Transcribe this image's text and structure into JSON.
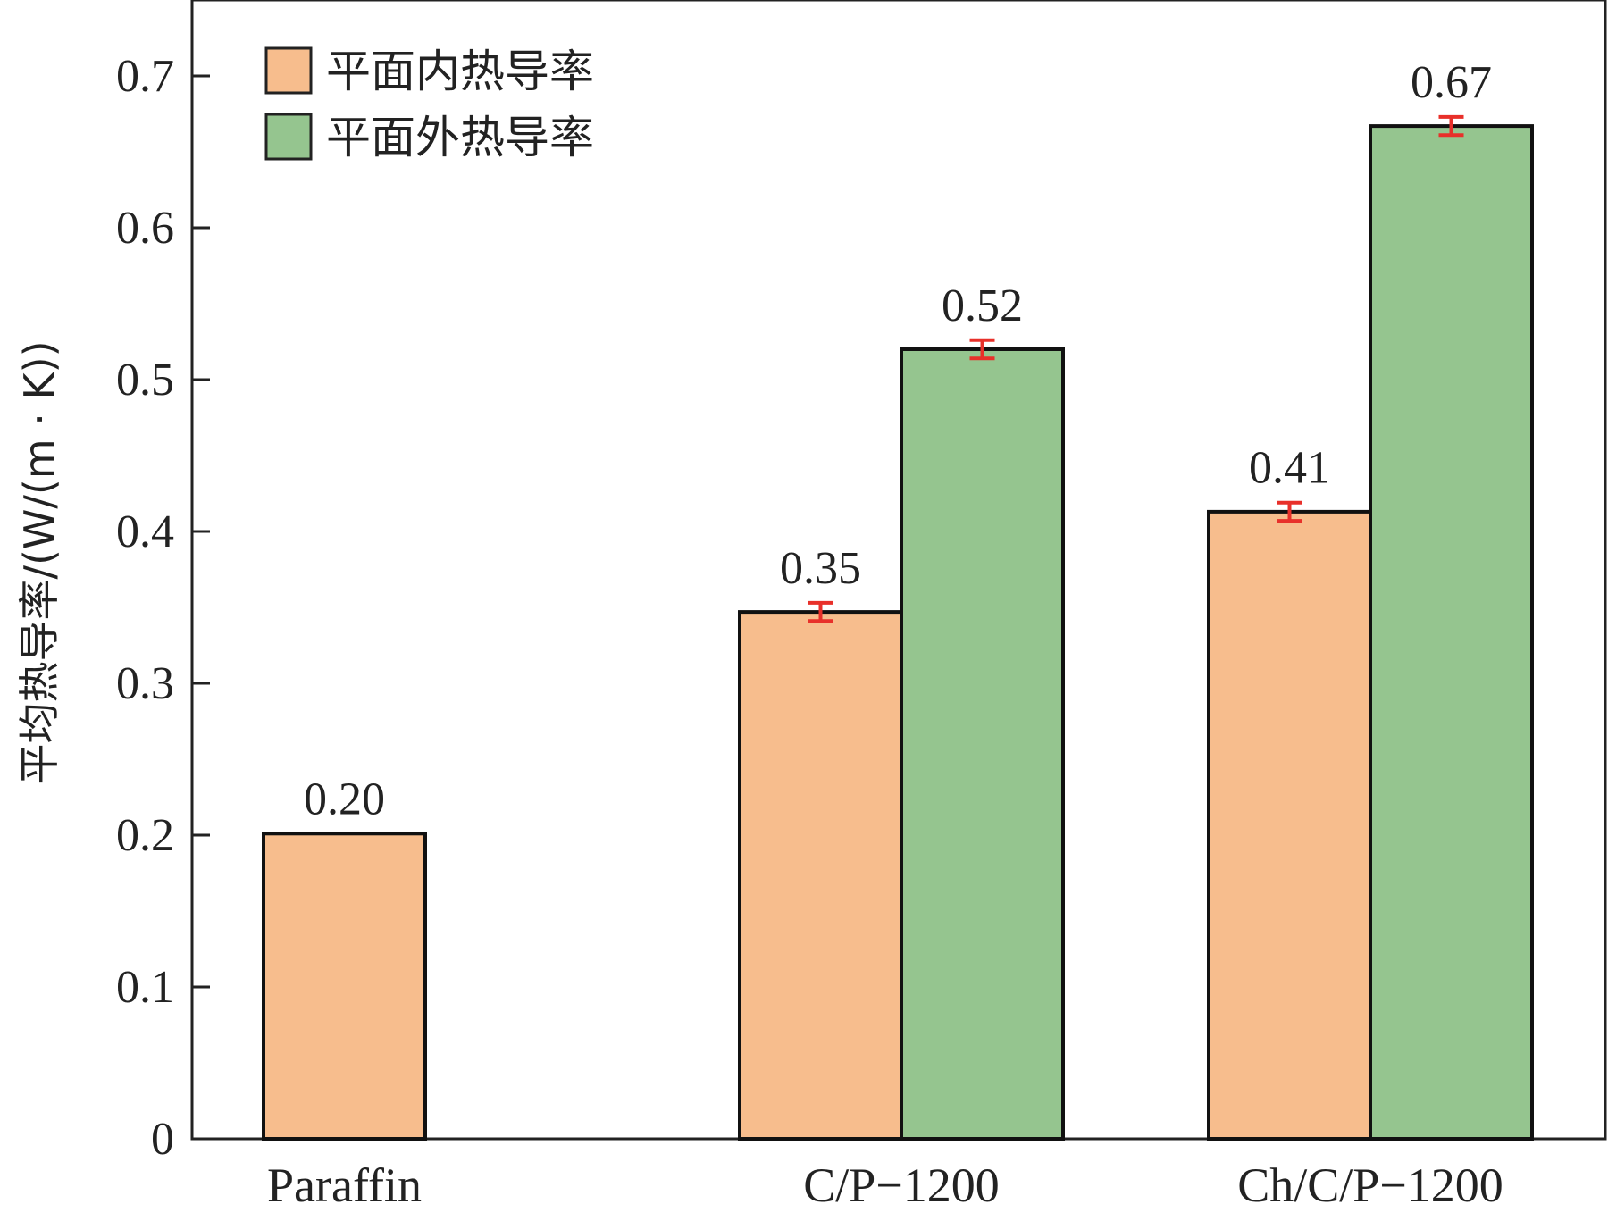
{
  "chart_data": {
    "type": "bar",
    "title": "",
    "xlabel": "",
    "ylabel": "平均热导率/(W/(m · K))",
    "ylim": [
      0,
      0.75
    ],
    "yticks": [
      0,
      0.1,
      0.2,
      0.3,
      0.4,
      0.5,
      0.6,
      0.7
    ],
    "ytick_labels": [
      "0",
      "0.1",
      "0.2",
      "0.3",
      "0.4",
      "0.5",
      "0.6",
      "0.7"
    ],
    "categories": [
      "Paraffin",
      "C/P−1200",
      "Ch/C/P−1200"
    ],
    "series": [
      {
        "name": "平面内热导率",
        "color": "#F7BD8D",
        "values": [
          0.201,
          0.347,
          0.413
        ],
        "errors": [
          null,
          0.006,
          0.006
        ],
        "labels": [
          "0.20",
          "0.35",
          "0.41"
        ]
      },
      {
        "name": "平面外热导率",
        "color": "#95C58F",
        "values": [
          null,
          0.52,
          0.667
        ],
        "errors": [
          null,
          0.006,
          0.006
        ],
        "labels": [
          null,
          "0.52",
          "0.67"
        ]
      }
    ],
    "error_bar_color": "#E8302A",
    "legend_position": "top-left",
    "grid": false
  }
}
